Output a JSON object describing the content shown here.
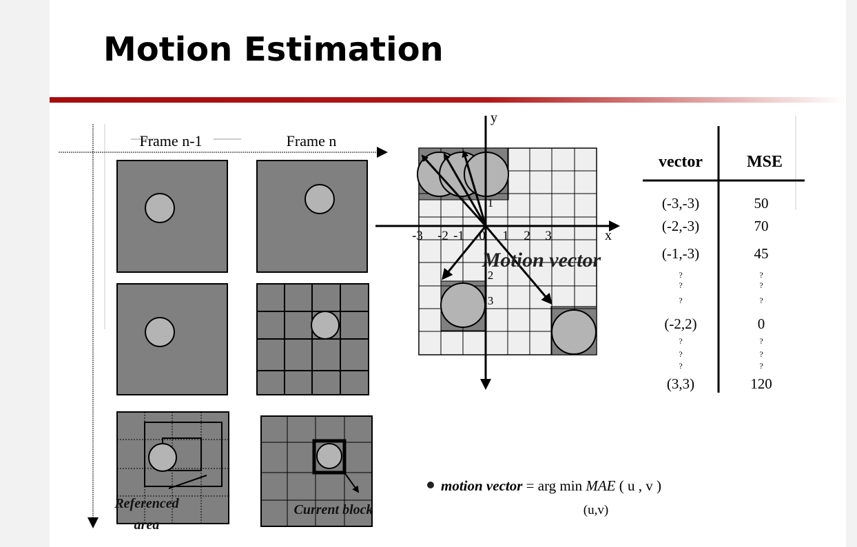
{
  "header": {
    "title": "Motion Estimation"
  },
  "frames": {
    "left_label": "Frame n-1",
    "right_label": "Frame n",
    "referenced_area": [
      "Referenced",
      "area"
    ],
    "current_block": "Current block"
  },
  "motion_diagram": {
    "x_label": "x",
    "y_label": "y",
    "caption": "Motion vector",
    "x_ticks": [
      "-3",
      "-2",
      "-1",
      "0",
      "1",
      "2",
      "3"
    ],
    "y_ticks": [
      "1",
      "2",
      "3"
    ]
  },
  "table": {
    "headers": [
      "vector",
      "MSE"
    ],
    "rows": [
      [
        "(-3,-3)",
        "50"
      ],
      [
        "(-2,-3)",
        "70"
      ],
      [
        "(-1,-3)",
        "45"
      ],
      [
        "?",
        "?"
      ],
      [
        "?",
        "?"
      ],
      [
        "?",
        "?"
      ],
      [
        "(-2,2)",
        "0"
      ],
      [
        "?",
        "?"
      ],
      [
        "?",
        "?"
      ],
      [
        "?",
        "?"
      ],
      [
        "(3,3)",
        "120"
      ]
    ]
  },
  "formula": {
    "term": "motion vector",
    "operator": "= arg min",
    "function": "MAE",
    "args": "( u , v )",
    "subscript": "(u,v)"
  }
}
